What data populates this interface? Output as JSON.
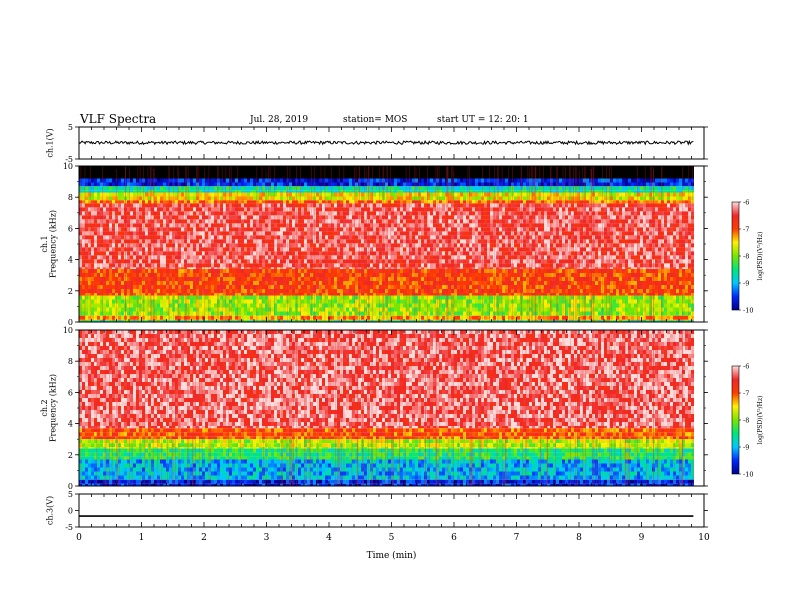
{
  "header": {
    "title": "VLF Spectra",
    "date": "Jul. 28, 2019",
    "station": "station= MOS",
    "start": "start  UT =   12: 20: 1"
  },
  "chart_data": [
    {
      "type": "line",
      "panel": "ch1-waveform",
      "ylabel": "ch.1(V)",
      "yticks": [
        "5",
        "-5"
      ],
      "ylim": [
        -5,
        5
      ],
      "xlim": [
        0,
        10
      ],
      "series": [
        {
          "x_range": [
            0,
            9.83
          ],
          "level": 0.1,
          "noise": 0.5
        }
      ]
    },
    {
      "type": "heatmap",
      "panel": "ch1-spectrogram",
      "ylabel": "ch.1\nFrequency (kHz)",
      "yticks": [
        "0",
        "2",
        "4",
        "6",
        "8",
        "10"
      ],
      "ylim": [
        0,
        10
      ],
      "xlim": [
        0,
        10
      ],
      "data_end_min": 9.83,
      "colorbar": {
        "label": "log(PSD)(V²/Hz)",
        "ticks": [
          "-6",
          "-7",
          "-8",
          "-9",
          "-10"
        ],
        "range": [
          -10,
          -6
        ]
      },
      "bands": [
        {
          "f0": 9.2,
          "f1": 10,
          "level": -11
        },
        {
          "f0": 8.7,
          "f1": 9.2,
          "level": -9.6
        },
        {
          "f0": 8.3,
          "f1": 8.7,
          "level": -8.6
        },
        {
          "f0": 7.8,
          "f1": 8.3,
          "level": -7.6
        },
        {
          "f0": 7.6,
          "f1": 7.8,
          "level": -7.1
        },
        {
          "f0": 3.4,
          "f1": 7.6,
          "level": -6.4
        },
        {
          "f0": 1.7,
          "f1": 3.4,
          "level": -6.9
        },
        {
          "f0": 0.4,
          "f1": 1.7,
          "level": -7.9
        },
        {
          "f0": 0.1,
          "f1": 0.4,
          "level": -7.3
        },
        {
          "f0": 0,
          "f1": 0.1,
          "level": -8.6
        }
      ]
    },
    {
      "type": "heatmap",
      "panel": "ch2-spectrogram",
      "ylabel": "ch.2\nFrequency (kHz)",
      "yticks": [
        "0",
        "2",
        "4",
        "6",
        "8",
        "10"
      ],
      "ylim": [
        0,
        10
      ],
      "xlim": [
        0,
        10
      ],
      "data_end_min": 9.83,
      "colorbar": {
        "label": "log(PSD)(V²/Hz)",
        "ticks": [
          "-6",
          "-7",
          "-8",
          "-9",
          "-10"
        ],
        "range": [
          -10,
          -6
        ]
      },
      "bands": [
        {
          "f0": 3.7,
          "f1": 10,
          "level": -6.3
        },
        {
          "f0": 3.0,
          "f1": 3.7,
          "level": -7.0
        },
        {
          "f0": 2.4,
          "f1": 3.0,
          "level": -7.8
        },
        {
          "f0": 1.7,
          "f1": 2.4,
          "level": -8.4
        },
        {
          "f0": 0.4,
          "f1": 1.7,
          "level": -9.0
        },
        {
          "f0": 0,
          "f1": 0.4,
          "level": -9.6
        }
      ]
    },
    {
      "type": "line",
      "panel": "ch3-waveform",
      "ylabel": "ch.3(V)",
      "yticks": [
        "5",
        "0",
        "-5"
      ],
      "ylim": [
        -5,
        5
      ],
      "xlim": [
        0,
        10
      ],
      "xlabel": "Time (min)",
      "xticks": [
        "0",
        "1",
        "2",
        "3",
        "4",
        "5",
        "6",
        "7",
        "8",
        "9",
        "10"
      ],
      "series": [
        {
          "x_range": [
            0,
            9.83
          ],
          "level": -1.7,
          "noise": 0
        }
      ]
    }
  ]
}
